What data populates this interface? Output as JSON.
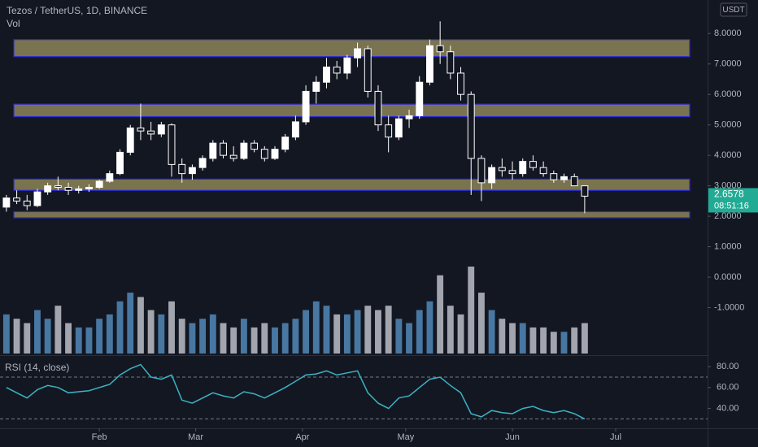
{
  "chart_data": {
    "type": "candlestick",
    "title": "Tezos / TetherUS, 1D, BINANCE",
    "volume_label": "Vol",
    "currency": "USDT",
    "ohlc": [
      [
        2.3,
        2.7,
        2.15,
        2.6
      ],
      [
        2.6,
        2.85,
        2.4,
        2.5
      ],
      [
        2.5,
        2.7,
        2.2,
        2.35
      ],
      [
        2.35,
        2.9,
        2.3,
        2.8
      ],
      [
        2.8,
        3.1,
        2.7,
        3.0
      ],
      [
        3.0,
        3.3,
        2.85,
        2.95
      ],
      [
        2.95,
        3.1,
        2.7,
        2.85
      ],
      [
        2.85,
        3.0,
        2.75,
        2.9
      ],
      [
        2.9,
        3.05,
        2.8,
        2.95
      ],
      [
        2.95,
        3.2,
        2.9,
        3.15
      ],
      [
        3.15,
        3.5,
        3.1,
        3.4
      ],
      [
        3.4,
        4.2,
        3.35,
        4.1
      ],
      [
        4.1,
        5.0,
        4.0,
        4.9
      ],
      [
        4.9,
        5.7,
        4.5,
        4.8
      ],
      [
        4.8,
        5.1,
        4.5,
        4.7
      ],
      [
        4.7,
        5.1,
        4.6,
        5.0
      ],
      [
        5.0,
        5.05,
        3.3,
        3.7
      ],
      [
        3.7,
        3.9,
        3.1,
        3.4
      ],
      [
        3.4,
        3.7,
        3.2,
        3.6
      ],
      [
        3.6,
        4.0,
        3.5,
        3.9
      ],
      [
        3.9,
        4.5,
        3.8,
        4.4
      ],
      [
        4.4,
        4.5,
        3.9,
        4.0
      ],
      [
        4.0,
        4.3,
        3.8,
        3.9
      ],
      [
        3.9,
        4.5,
        3.85,
        4.4
      ],
      [
        4.4,
        4.5,
        4.1,
        4.2
      ],
      [
        4.2,
        4.3,
        3.8,
        3.9
      ],
      [
        3.9,
        4.3,
        3.85,
        4.2
      ],
      [
        4.2,
        4.7,
        4.1,
        4.6
      ],
      [
        4.6,
        5.3,
        4.5,
        5.1
      ],
      [
        5.1,
        6.3,
        5.0,
        6.1
      ],
      [
        6.1,
        6.6,
        5.7,
        6.4
      ],
      [
        6.4,
        7.2,
        6.2,
        6.9
      ],
      [
        6.9,
        7.1,
        6.5,
        6.7
      ],
      [
        6.7,
        7.3,
        6.5,
        7.2
      ],
      [
        7.2,
        7.7,
        6.9,
        7.5
      ],
      [
        7.5,
        7.6,
        5.9,
        6.1
      ],
      [
        6.1,
        6.3,
        4.8,
        5.0
      ],
      [
        5.0,
        5.3,
        4.1,
        4.6
      ],
      [
        4.6,
        5.3,
        4.5,
        5.2
      ],
      [
        5.2,
        5.5,
        4.9,
        5.3
      ],
      [
        5.3,
        6.6,
        5.2,
        6.4
      ],
      [
        6.4,
        7.8,
        6.3,
        7.6
      ],
      [
        7.6,
        8.4,
        7.0,
        7.4
      ],
      [
        7.4,
        7.6,
        6.5,
        6.7
      ],
      [
        6.7,
        6.9,
        5.8,
        6.0
      ],
      [
        6.0,
        6.1,
        2.7,
        3.9
      ],
      [
        3.9,
        4.0,
        2.5,
        3.1
      ],
      [
        3.1,
        3.7,
        2.9,
        3.6
      ],
      [
        3.6,
        3.9,
        3.3,
        3.5
      ],
      [
        3.5,
        3.8,
        3.2,
        3.4
      ],
      [
        3.4,
        3.9,
        3.3,
        3.8
      ],
      [
        3.8,
        4.0,
        3.5,
        3.6
      ],
      [
        3.6,
        3.8,
        3.3,
        3.4
      ],
      [
        3.4,
        3.5,
        3.1,
        3.2
      ],
      [
        3.2,
        3.4,
        3.1,
        3.3
      ],
      [
        3.3,
        3.4,
        3.0,
        3.0
      ],
      [
        3.0,
        3.0,
        2.1,
        2.66
      ]
    ],
    "up_color": "#ffffff",
    "down_color": "#131722",
    "xlim": [
      -0.62,
      67.9
    ],
    "xticks": [
      {
        "value": 9,
        "label": "Feb"
      },
      {
        "value": 18.33,
        "label": "Mar"
      },
      {
        "value": 28.67,
        "label": "Apr"
      },
      {
        "value": 38.67,
        "label": "May"
      },
      {
        "value": 49,
        "label": "Jun"
      },
      {
        "value": 59,
        "label": "Jul"
      }
    ],
    "ylim": [
      -2.56,
      9.1
    ],
    "yticks": [
      {
        "value": -1,
        "label": "-1.0000"
      },
      {
        "value": 0,
        "label": "0.0000"
      },
      {
        "value": 1,
        "label": "1.0000"
      },
      {
        "value": 2,
        "label": "2.0000"
      },
      {
        "value": 3,
        "label": "3.0000"
      },
      {
        "value": 4,
        "label": "4.0000"
      },
      {
        "value": 5,
        "label": "5.0000"
      },
      {
        "value": 6,
        "label": "6.0000"
      },
      {
        "value": 7,
        "label": "7.0000"
      },
      {
        "value": 8,
        "label": "8.0000"
      }
    ],
    "zones": [
      [
        7.24,
        7.8
      ],
      [
        5.27,
        5.68
      ],
      [
        2.85,
        3.22
      ],
      [
        1.95,
        2.15
      ]
    ],
    "zone_color": "#7a7350",
    "zone_border": "#2b2bd6",
    "last_price": 2.6578,
    "countdown": "08:51:16",
    "last_price_color": "#22ab94",
    "volume": {
      "values": [
        45,
        40,
        35,
        50,
        40,
        55,
        35,
        30,
        30,
        40,
        45,
        60,
        70,
        65,
        50,
        45,
        60,
        40,
        35,
        40,
        45,
        35,
        30,
        40,
        30,
        35,
        30,
        35,
        40,
        50,
        60,
        55,
        45,
        45,
        50,
        55,
        50,
        55,
        40,
        35,
        50,
        60,
        90,
        55,
        45,
        100,
        70,
        50,
        40,
        35,
        35,
        30,
        30,
        25,
        25,
        30,
        35
      ],
      "up_color": "#4f82b0",
      "down_color": "#b2b5be"
    },
    "rsi": {
      "label": "RSI (14, close)",
      "values": [
        60,
        55,
        50,
        58,
        62,
        60,
        55,
        56,
        57,
        60,
        63,
        72,
        78,
        82,
        70,
        68,
        72,
        48,
        45,
        50,
        55,
        52,
        50,
        56,
        54,
        50,
        55,
        60,
        66,
        72,
        73,
        76,
        72,
        74,
        76,
        55,
        45,
        40,
        50,
        52,
        60,
        68,
        70,
        62,
        55,
        35,
        32,
        38,
        36,
        35,
        40,
        42,
        38,
        36,
        38,
        35,
        30
      ],
      "color": "#3bb3c3",
      "ylim": [
        21,
        90.2
      ],
      "yticks": [
        {
          "value": 40,
          "label": "40.00"
        },
        {
          "value": 60,
          "label": "60.00"
        },
        {
          "value": 80,
          "label": "80.00"
        }
      ],
      "levels": [
        30,
        70
      ]
    },
    "grid": false
  }
}
